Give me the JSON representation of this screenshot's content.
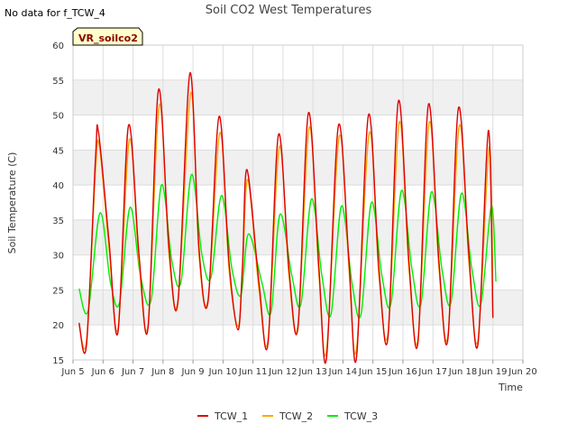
{
  "note": "No data for f_TCW_4",
  "colors": {
    "band": "#f0f0f0",
    "grid": "#dddddd",
    "axis": "#999999"
  },
  "chart_data": {
    "type": "line",
    "title": "Soil CO2 West Temperatures",
    "xlabel": "Time",
    "ylabel": "Soil Temperature (C)",
    "ylim": [
      15,
      60
    ],
    "xlim": [
      5,
      20
    ],
    "grid": true,
    "legend_placement": "bottom",
    "annotation": "VR_soilco2",
    "x_ticks": [
      5,
      6,
      7,
      8,
      9,
      10,
      11,
      12,
      13,
      14,
      15,
      16,
      17,
      18,
      19,
      20
    ],
    "x_tick_labels": [
      "Jun 5",
      "Jun 6",
      "Jun 7",
      "Jun 8",
      "Jun 9",
      "Jun 10",
      "Jun 11",
      "Jun 12",
      "Jun 13",
      "Jun 14",
      "Jun 15",
      "Jun 16",
      "Jun 17",
      "Jun 18",
      "Jun 19",
      "Jun 20"
    ],
    "y_ticks": [
      15,
      20,
      25,
      30,
      35,
      40,
      45,
      50,
      55,
      60
    ],
    "y_tick_labels": [
      "15",
      "20",
      "25",
      "30",
      "35",
      "40",
      "45",
      "50",
      "55",
      "60"
    ],
    "series": [
      {
        "name": "TCW_1",
        "color": "#dd0000",
        "x": [
          5.2,
          5.45,
          5.75,
          5.85,
          6.2,
          6.5,
          6.85,
          7.2,
          7.5,
          7.85,
          8.2,
          8.5,
          8.9,
          9.2,
          9.5,
          9.87,
          10.2,
          10.5,
          10.65,
          10.8,
          11.2,
          11.5,
          11.85,
          12.2,
          12.5,
          12.85,
          13.2,
          13.45,
          13.85,
          14.2,
          14.45,
          14.85,
          15.2,
          15.5,
          15.85,
          16.2,
          16.5,
          16.85,
          17.2,
          17.5,
          17.85,
          18.2,
          18.5,
          18.85,
          19.0
        ],
        "y": [
          20.3,
          17.2,
          44,
          47.5,
          32,
          19,
          48.5,
          30,
          19.6,
          53.6,
          31,
          23.3,
          56,
          31,
          23.3,
          49.8,
          29,
          19.3,
          28.5,
          42.2,
          26,
          17.3,
          47.2,
          28,
          19.6,
          50.3,
          28,
          15.2,
          48.5,
          29,
          15.3,
          50,
          28,
          18.2,
          52,
          29,
          17.5,
          51.5,
          29,
          18,
          51,
          30,
          17.2,
          47.8,
          21
        ]
      },
      {
        "name": "TCW_2",
        "color": "#ffa500",
        "x": [
          5.2,
          5.45,
          5.75,
          5.88,
          6.2,
          6.5,
          6.88,
          7.2,
          7.5,
          7.88,
          8.2,
          8.5,
          8.93,
          9.2,
          9.5,
          9.9,
          10.2,
          10.5,
          10.65,
          10.83,
          11.2,
          11.5,
          11.88,
          12.2,
          12.5,
          12.88,
          13.2,
          13.45,
          13.88,
          14.2,
          14.45,
          14.88,
          15.2,
          15.5,
          15.88,
          16.2,
          16.5,
          16.88,
          17.2,
          17.5,
          17.88,
          18.2,
          18.5,
          18.88,
          19.0
        ],
        "y": [
          20,
          17.8,
          42,
          45.5,
          31,
          19.5,
          46.5,
          29,
          20,
          51.5,
          30,
          23.6,
          53.2,
          30,
          23.6,
          47.5,
          28,
          19.8,
          28,
          40.8,
          25,
          17.8,
          45.5,
          27,
          20,
          48.3,
          27,
          16.3,
          47,
          28,
          16.5,
          47.5,
          27,
          18.8,
          49,
          28,
          18,
          49,
          28,
          18.5,
          48.5,
          29,
          17.8,
          45.5,
          21.2
        ]
      },
      {
        "name": "TCW_3",
        "color": "#00ee00",
        "x": [
          5.2,
          5.5,
          5.9,
          6.25,
          6.55,
          6.9,
          7.25,
          7.6,
          7.95,
          8.3,
          8.6,
          8.95,
          9.3,
          9.6,
          9.95,
          10.3,
          10.6,
          10.85,
          11.3,
          11.6,
          11.9,
          12.3,
          12.6,
          12.95,
          13.3,
          13.6,
          13.95,
          14.3,
          14.6,
          14.95,
          15.3,
          15.6,
          15.95,
          16.3,
          16.6,
          16.95,
          17.3,
          17.6,
          17.95,
          18.3,
          18.6,
          18.95,
          19.1
        ],
        "y": [
          25.2,
          22,
          36,
          26,
          23.2,
          36.8,
          27,
          23.5,
          40,
          29,
          26.2,
          41.5,
          30,
          26.8,
          38.5,
          28,
          24.3,
          33,
          26,
          21.8,
          35.8,
          27,
          23,
          38,
          27,
          21.5,
          37,
          26,
          21.5,
          37.5,
          27,
          23,
          39.2,
          28,
          23,
          39,
          28,
          23.2,
          38.8,
          28,
          23,
          37,
          26.2
        ]
      }
    ]
  }
}
